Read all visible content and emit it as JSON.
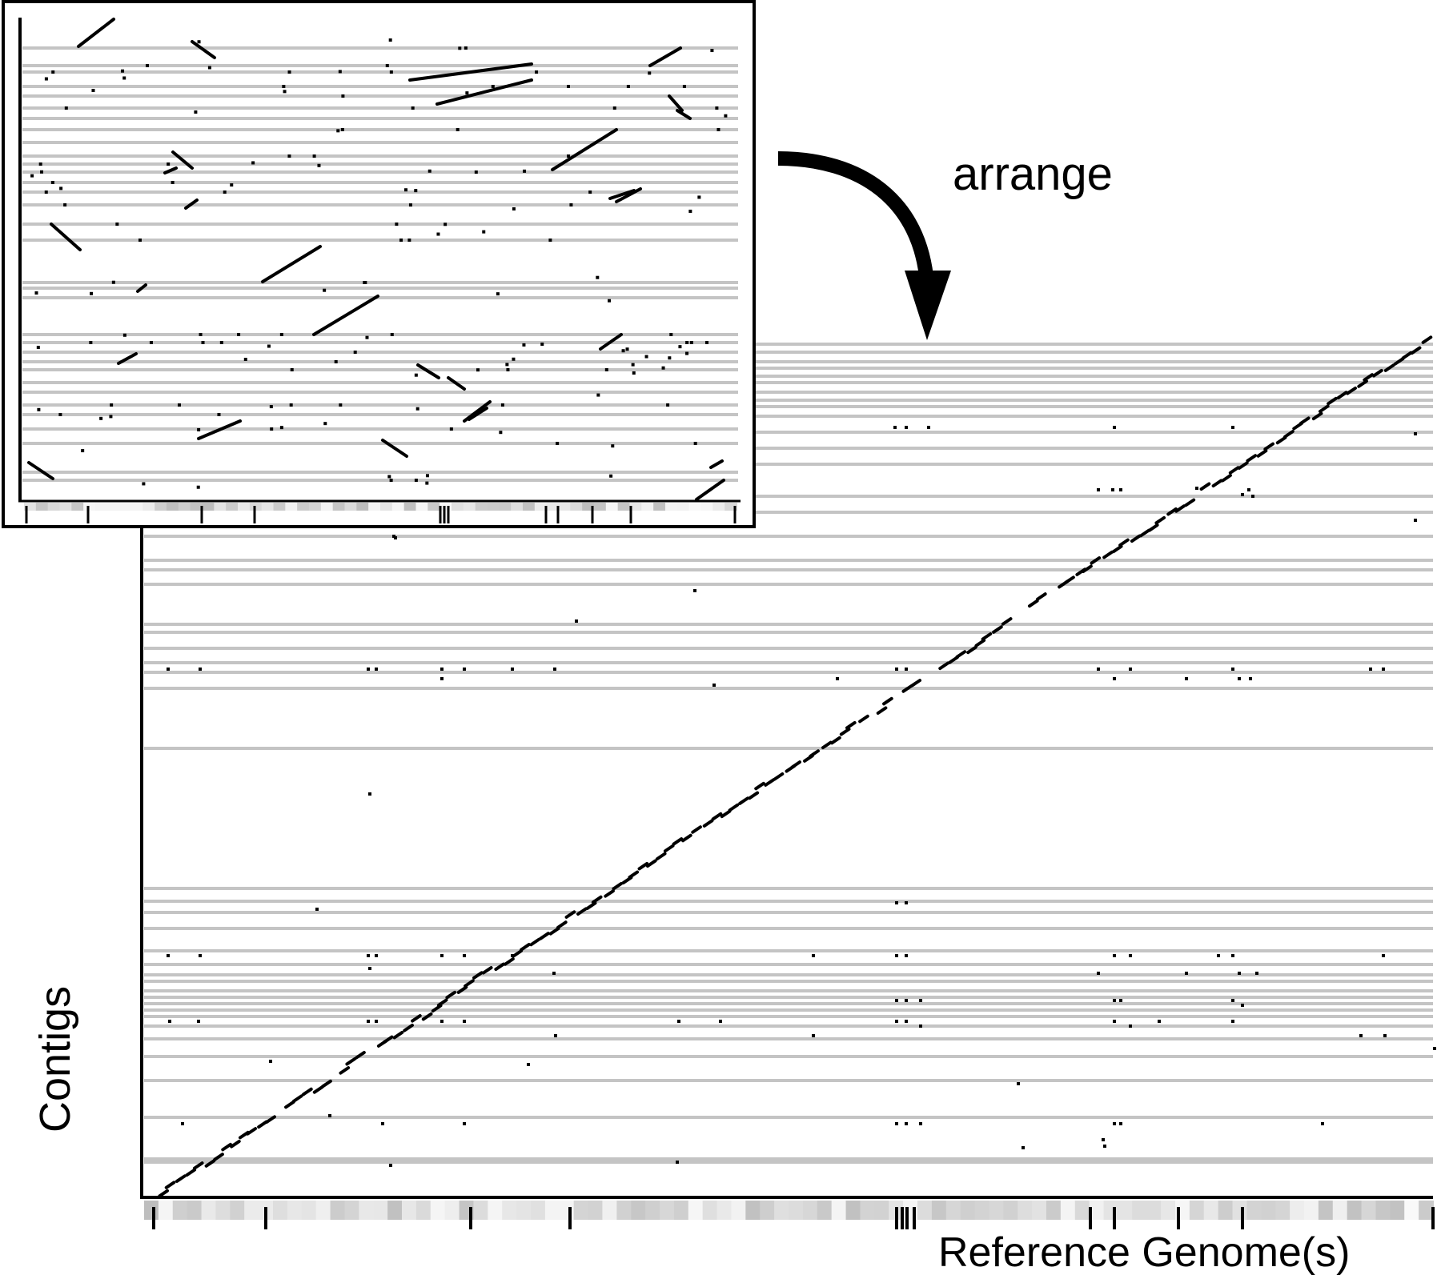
{
  "figure": {
    "arrow_label": "arrange",
    "ylabel": "Contigs",
    "xlabel": "Reference Genome(s)"
  },
  "colors": {
    "contig_lines": "#c4c4c4",
    "marks": "#000000",
    "frame": "#000000",
    "background": "#ffffff"
  },
  "chart_data": [
    {
      "type": "scatter",
      "name": "unordered-dot-plot",
      "title": "",
      "xlabel": "",
      "ylabel": "",
      "grid": false,
      "contig_rows": 34,
      "description_of_marks": "short alignment segments scattered across rows in random contig order",
      "scale": "relative position, 0 to 1"
    },
    {
      "type": "scatter",
      "name": "arranged-dot-plot",
      "title": "",
      "xlabel": "Reference Genome(s)",
      "ylabel": "Contigs",
      "grid": false,
      "contig_rows": 46,
      "diagonal_start": [
        0.01,
        0.01
      ],
      "diagonal_end": [
        1.0,
        1.0
      ],
      "scale": "relative position, 0 to 1"
    }
  ]
}
